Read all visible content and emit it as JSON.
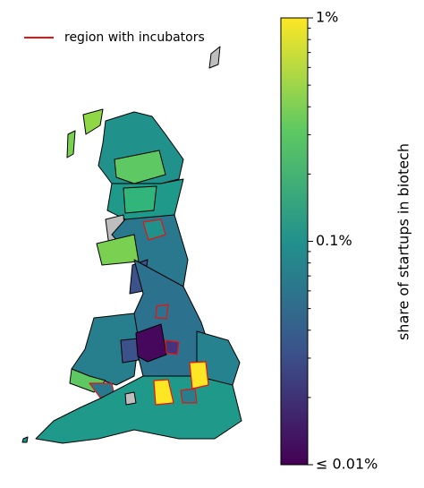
{
  "legend": {
    "label": "region with incubators",
    "color": "#e8130f"
  },
  "colorbar": {
    "label": "share of startups in biotech",
    "scale": "log",
    "lim": [
      0.01,
      1
    ],
    "ticks": [
      {
        "value": 0.01,
        "label": "≤ 0.01%"
      },
      {
        "value": 0.1,
        "label": "0.1%"
      },
      {
        "value": 1,
        "label": "1%"
      }
    ],
    "minor_ticks": [
      0.02,
      0.03,
      0.04,
      0.05,
      0.06,
      0.07,
      0.08,
      0.09,
      0.2,
      0.3,
      0.4,
      0.5,
      0.6,
      0.7,
      0.8,
      0.9
    ],
    "colors": [
      "#440154",
      "#3b528b",
      "#21918c",
      "#5ec962",
      "#fde725"
    ]
  }
}
